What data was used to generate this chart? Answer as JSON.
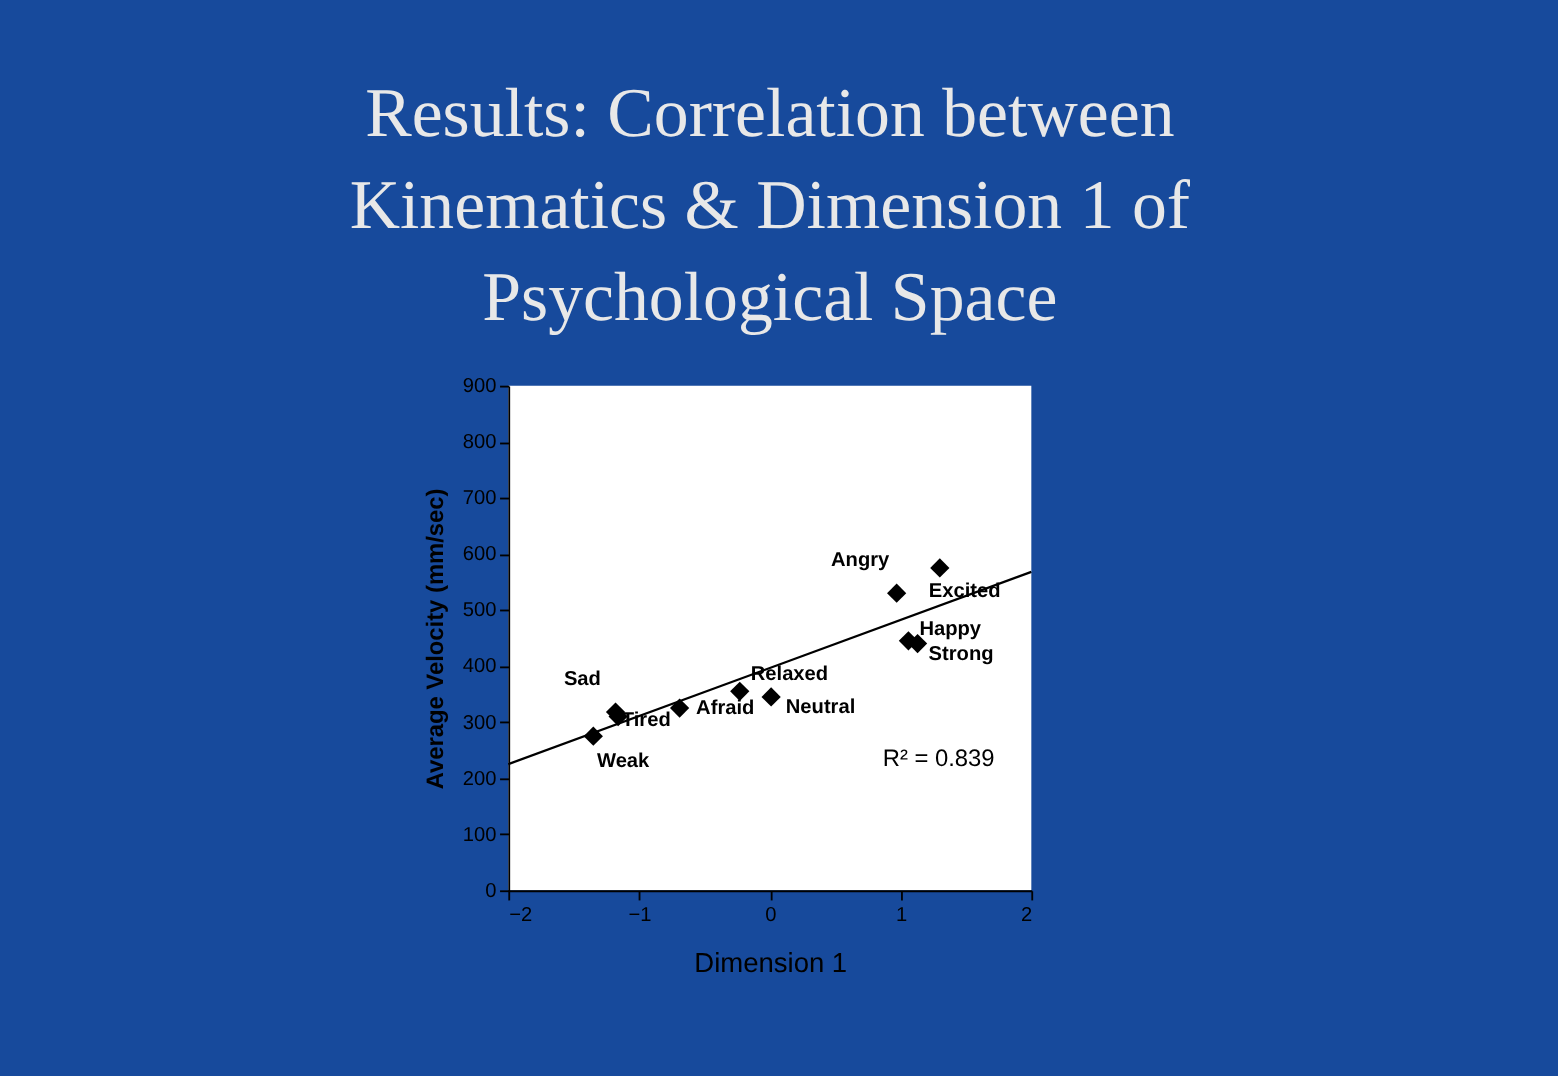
{
  "chart_data": {
    "type": "scatter",
    "title": "Results:  Correlation between\nKinematics & Dimension 1 of\nPsychological Space",
    "xlabel": "Dimension 1",
    "ylabel": "Average Velocity (mm/sec)",
    "xlim": [
      -2,
      2
    ],
    "xticks": [
      -2,
      -1,
      0,
      1,
      2
    ],
    "ylim": [
      0,
      900
    ],
    "yticks": [
      0,
      100,
      200,
      300,
      400,
      500,
      600,
      700,
      800,
      900
    ],
    "grid": false,
    "series": [
      {
        "marker": "diamond",
        "color": "#000000",
        "x": [
          -1.35,
          -1.18,
          -1.16,
          -0.69,
          -0.23,
          0.01,
          0.97,
          1.3,
          1.06,
          1.13
        ],
        "values": [
          275,
          318,
          310,
          325,
          355,
          345,
          530,
          575,
          445,
          440
        ]
      },
      {
        "type": "line",
        "color": "#000000",
        "x": [
          -2,
          2
        ],
        "values": [
          225,
          568
        ],
        "line_style": "solid"
      }
    ],
    "annotations": [
      "R² = 0.839",
      {
        "text": "Weak",
        "x": -1.35,
        "y": 275
      },
      {
        "text": "Sad",
        "x": -1.18,
        "y": 318
      },
      {
        "text": "Tired",
        "x": -1.16,
        "y": 310
      },
      {
        "text": "Afraid",
        "x": -0.69,
        "y": 325
      },
      {
        "text": "Relaxed",
        "x": -0.23,
        "y": 355
      },
      {
        "text": "Neutral",
        "x": 0.01,
        "y": 345
      },
      {
        "text": "Angry",
        "x": 0.97,
        "y": 530
      },
      {
        "text": "Excited",
        "x": 1.3,
        "y": 575
      },
      {
        "text": "Happy",
        "x": 1.06,
        "y": 445
      },
      {
        "text": "Strong",
        "x": 1.13,
        "y": 440
      }
    ]
  }
}
